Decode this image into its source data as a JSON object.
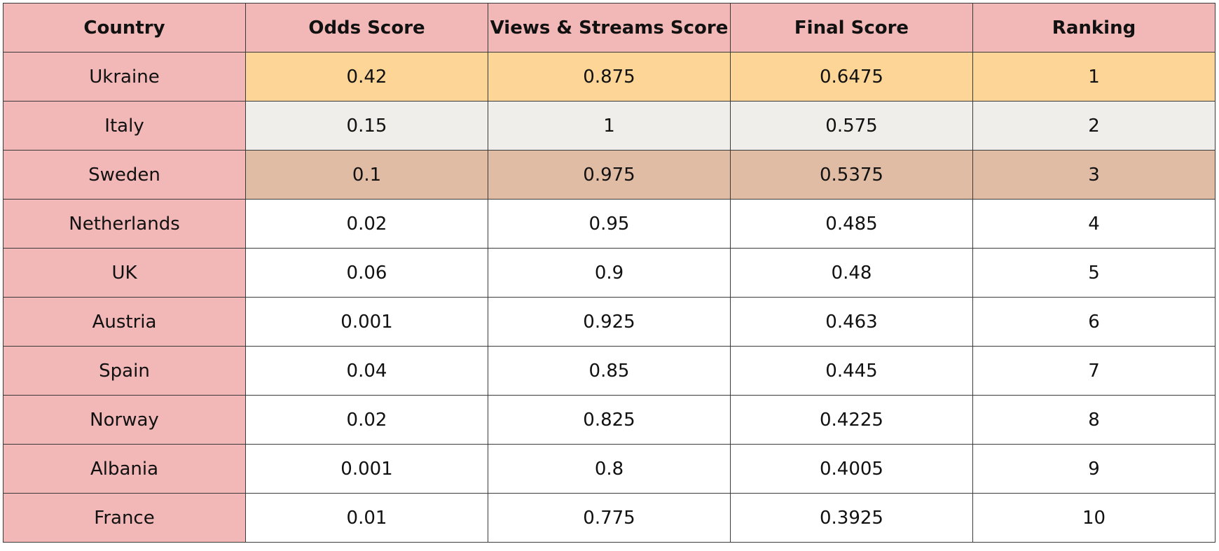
{
  "colors": {
    "header_bg": "#f2b8b7",
    "country_col_bg": "#f2b8b7",
    "rank1_bg": "#fcd597",
    "rank2_bg": "#efeeea",
    "rank3_bg": "#e0bca4",
    "default_bg": "#ffffff",
    "border": "#3a3a3a"
  },
  "headers": [
    "Country",
    "Odds Score",
    "Views & Streams Score",
    "Final Score",
    "Ranking"
  ],
  "rows": [
    {
      "country": "Ukraine",
      "odds": "0.42",
      "views": "0.875",
      "final": "0.6475",
      "rank": "1"
    },
    {
      "country": "Italy",
      "odds": "0.15",
      "views": "1",
      "final": "0.575",
      "rank": "2"
    },
    {
      "country": "Sweden",
      "odds": "0.1",
      "views": "0.975",
      "final": "0.5375",
      "rank": "3"
    },
    {
      "country": "Netherlands",
      "odds": "0.02",
      "views": "0.95",
      "final": "0.485",
      "rank": "4"
    },
    {
      "country": "UK",
      "odds": "0.06",
      "views": "0.9",
      "final": "0.48",
      "rank": "5"
    },
    {
      "country": "Austria",
      "odds": "0.001",
      "views": "0.925",
      "final": "0.463",
      "rank": "6"
    },
    {
      "country": "Spain",
      "odds": "0.04",
      "views": "0.85",
      "final": "0.445",
      "rank": "7"
    },
    {
      "country": "Norway",
      "odds": "0.02",
      "views": "0.825",
      "final": "0.4225",
      "rank": "8"
    },
    {
      "country": "Albania",
      "odds": "0.001",
      "views": "0.8",
      "final": "0.4005",
      "rank": "9"
    },
    {
      "country": "France",
      "odds": "0.01",
      "views": "0.775",
      "final": "0.3925",
      "rank": "10"
    }
  ]
}
